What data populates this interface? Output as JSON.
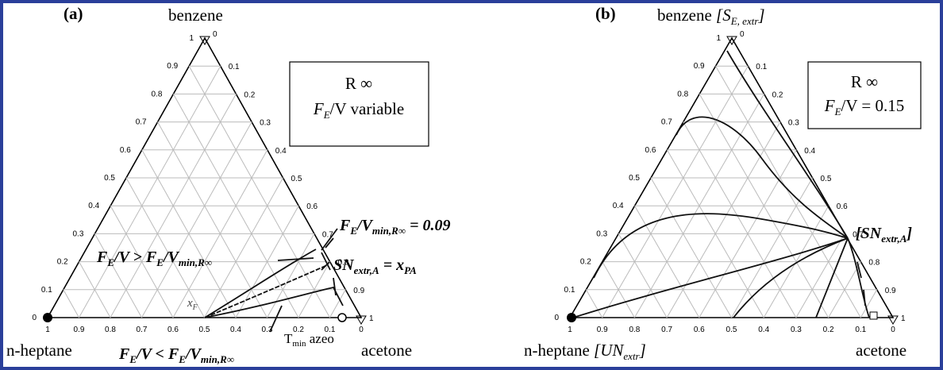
{
  "ticks": {
    "left": [
      "0",
      "0.1",
      "0.2",
      "0.3",
      "0.4",
      "0.5",
      "0.6",
      "0.7",
      "0.8",
      "0.9",
      "1"
    ],
    "right": [
      "0",
      "0.1",
      "0.2",
      "0.3",
      "0.4",
      "0.5",
      "0.6",
      "0.7",
      "0.8",
      "0.9",
      "1"
    ],
    "bottom": [
      "1",
      "0.9",
      "0.8",
      "0.7",
      "0.6",
      "0.5",
      "0.4",
      "0.3",
      "0.2",
      "0.1",
      "0"
    ]
  },
  "panels": [
    {
      "label": "(a)",
      "top": [
        "benzene"
      ],
      "left": [
        "n-heptane"
      ],
      "right": "acetone",
      "box": {
        "line1": "R ∞",
        "line2": [
          "F",
          "E",
          "/V variable"
        ]
      },
      "annotations": {
        "min": [
          "F",
          "E",
          "/V",
          "min,R∞",
          " = 0.09"
        ],
        "above": [
          "F",
          "E",
          "/V > F",
          "E",
          "/V",
          "min,",
          "R∞"
        ],
        "sn": [
          "SN",
          "extr,A",
          " = x",
          "PA"
        ],
        "xf": [
          "x",
          "F"
        ],
        "tmin": [
          "T",
          "min",
          " azeo"
        ],
        "below": [
          "F",
          "E",
          "/V < F",
          "E",
          "/V",
          "min,",
          "R∞"
        ]
      }
    },
    {
      "label": "(b)",
      "top": [
        "benzene ",
        "[S",
        "E, extr",
        "]"
      ],
      "left": [
        "n-heptane ",
        "[UN",
        "extr",
        "]"
      ],
      "right": "acetone",
      "box": {
        "line1": "R ∞",
        "line2": [
          "F",
          "E",
          "/V = 0.15"
        ]
      },
      "annotations": {
        "sn": [
          "[SN",
          "extr,A",
          "]"
        ]
      }
    }
  ]
}
